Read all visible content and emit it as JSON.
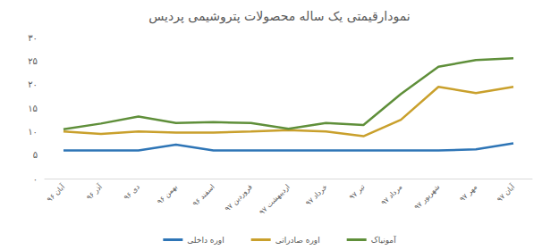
{
  "chart_data": {
    "type": "line",
    "title": "نمودارقیمتی یک ساله محصولات پتروشیمی پردیس",
    "categories": [
      "آبان ۹۶",
      "آذر ۹۶",
      "دی ۹۶",
      "بهمن ۹۶",
      "اسفند ۹۶",
      "فروردین ۹۷",
      "اردیبهشت ۹۷",
      "خرداد ۹۷",
      "تیر ۹۷",
      "مرداد ۹۷",
      "شهریور ۹۷",
      "مهر ۹۷",
      "آبان ۹۷"
    ],
    "series": [
      {
        "name": "اوره داخلی",
        "color": "#2e75b6",
        "values": [
          6,
          6,
          6,
          7.2,
          6,
          6,
          6,
          6,
          6,
          6,
          6,
          6.2,
          7.5
        ]
      },
      {
        "name": "اوره صادراتی",
        "color": "#c9a02c",
        "values": [
          10,
          9.5,
          10,
          9.8,
          9.8,
          10,
          10.3,
          10,
          9,
          12.5,
          19.5,
          18.2,
          19.5
        ]
      },
      {
        "name": "آمونیاک",
        "color": "#5f8f3a",
        "values": [
          10.5,
          11.7,
          13.2,
          11.8,
          12,
          11.8,
          10.6,
          11.8,
          11.4,
          18,
          23.8,
          25.2,
          25.6
        ]
      }
    ],
    "ylim": [
      0,
      30
    ],
    "yticks": [
      {
        "value": 0,
        "label": "۰"
      },
      {
        "value": 5,
        "label": "۵"
      },
      {
        "value": 10,
        "label": "۱۰"
      },
      {
        "value": 15,
        "label": "۱۵"
      },
      {
        "value": 20,
        "label": "۲۰"
      },
      {
        "value": 25,
        "label": "۲۵"
      },
      {
        "value": 30,
        "label": "۳۰"
      }
    ],
    "grid": false,
    "legend": "bottom",
    "marker": "none"
  }
}
